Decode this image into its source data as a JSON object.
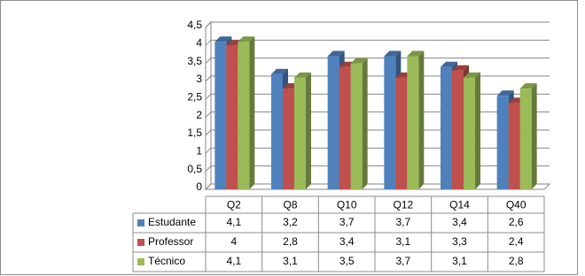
{
  "chart_data": {
    "type": "bar3d",
    "categories": [
      "Q2",
      "Q8",
      "Q10",
      "Q12",
      "Q14",
      "Q40"
    ],
    "series": [
      {
        "name": "Estudante",
        "color": "#4f81bd",
        "values": [
          4.1,
          3.2,
          3.7,
          3.7,
          3.4,
          2.6
        ],
        "value_labels": [
          "4,1",
          "3,2",
          "3,7",
          "3,7",
          "3,4",
          "2,6"
        ]
      },
      {
        "name": "Professor",
        "color": "#c0504d",
        "values": [
          4,
          2.8,
          3.4,
          3.1,
          3.3,
          2.4
        ],
        "value_labels": [
          "4",
          "2,8",
          "3,4",
          "3,1",
          "3,3",
          "2,4"
        ]
      },
      {
        "name": "Técnico",
        "color": "#9bbb59",
        "values": [
          4.1,
          3.1,
          3.5,
          3.7,
          3.1,
          2.8
        ],
        "value_labels": [
          "4,1",
          "3,1",
          "3,5",
          "3,7",
          "3,1",
          "2,8"
        ]
      }
    ],
    "ylim": [
      0,
      4.5
    ],
    "yticks": [
      0,
      {
        "value": 0.5,
        "label": "0,5"
      },
      1,
      {
        "value": 1.5,
        "label": "1,5"
      },
      2,
      {
        "value": 2.5,
        "label": "2,5"
      },
      3,
      {
        "value": 3.5,
        "label": "3,5"
      },
      4,
      {
        "value": 4.5,
        "label": "4,5"
      }
    ],
    "grid": true
  }
}
